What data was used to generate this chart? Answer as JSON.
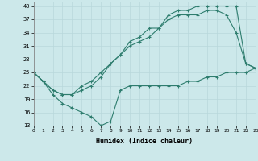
{
  "line_min_x": [
    0,
    1,
    2,
    3,
    4,
    5,
    6,
    7,
    8,
    9,
    10,
    11,
    12,
    13,
    14,
    15,
    16,
    17,
    18,
    19,
    20,
    21,
    22,
    23
  ],
  "line_min_y": [
    25,
    23,
    20,
    18,
    17,
    16,
    15,
    13,
    14,
    21,
    22,
    22,
    22,
    22,
    22,
    22,
    23,
    23,
    24,
    24,
    25,
    25,
    25,
    26
  ],
  "line_max_x": [
    0,
    1,
    2,
    3,
    4,
    5,
    6,
    7,
    8,
    9,
    10,
    11,
    12,
    13,
    14,
    15,
    16,
    17,
    18,
    19,
    20,
    21,
    22,
    23
  ],
  "line_max_y": [
    25,
    23,
    21,
    20,
    20,
    22,
    23,
    25,
    27,
    29,
    32,
    33,
    35,
    35,
    38,
    39,
    39,
    40,
    40,
    40,
    40,
    40,
    27,
    26
  ],
  "line_mid_x": [
    0,
    1,
    2,
    3,
    4,
    5,
    6,
    7,
    8,
    9,
    10,
    11,
    12,
    13,
    14,
    15,
    16,
    17,
    18,
    19,
    20,
    21,
    22,
    23
  ],
  "line_mid_y": [
    25,
    23,
    21,
    20,
    20,
    21,
    22,
    24,
    27,
    29,
    31,
    32,
    33,
    35,
    37,
    38,
    38,
    38,
    39,
    39,
    38,
    34,
    27,
    26
  ],
  "xlabel": "Humidex (Indice chaleur)",
  "ylim": [
    13,
    41
  ],
  "xlim": [
    0,
    23
  ],
  "yticks": [
    13,
    16,
    19,
    22,
    25,
    28,
    31,
    34,
    37,
    40
  ],
  "xticks": [
    0,
    1,
    2,
    3,
    4,
    5,
    6,
    7,
    8,
    9,
    10,
    11,
    12,
    13,
    14,
    15,
    16,
    17,
    18,
    19,
    20,
    21,
    22,
    23
  ],
  "line_color": "#2e7d6e",
  "bg_color": "#cce8ea",
  "grid_color": "#b8d8db"
}
